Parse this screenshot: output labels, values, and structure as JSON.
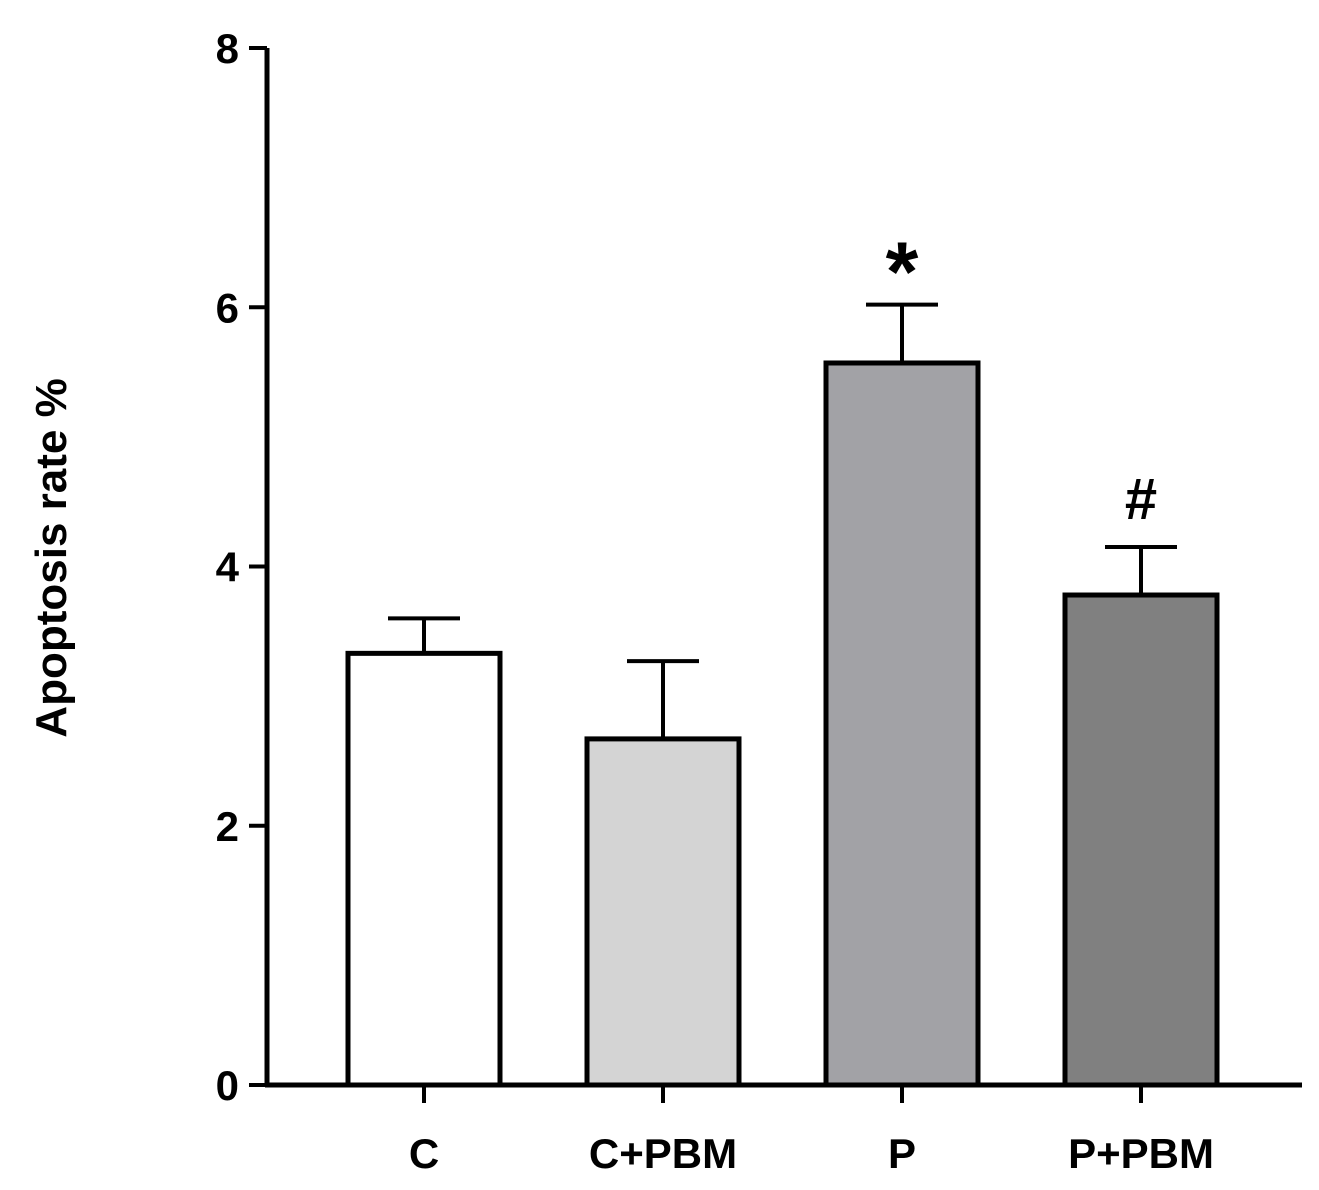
{
  "chart_data": {
    "type": "bar",
    "title": "",
    "xlabel": "",
    "ylabel": "Apoptosis rate %",
    "ylim": [
      0,
      8
    ],
    "yticks": [
      0,
      2,
      4,
      6,
      8
    ],
    "grid": false,
    "legend": "none",
    "categories": [
      "C",
      "C+PBM",
      "P",
      "P+PBM"
    ],
    "values": [
      3.33,
      2.67,
      5.57,
      3.78
    ],
    "errors": [
      0.27,
      0.6,
      0.45,
      0.37
    ],
    "colors": [
      "#ffffff",
      "#d4d4d4",
      "#a2a2a6",
      "#808080"
    ],
    "annotations": [
      "",
      "",
      "*",
      "#"
    ]
  }
}
